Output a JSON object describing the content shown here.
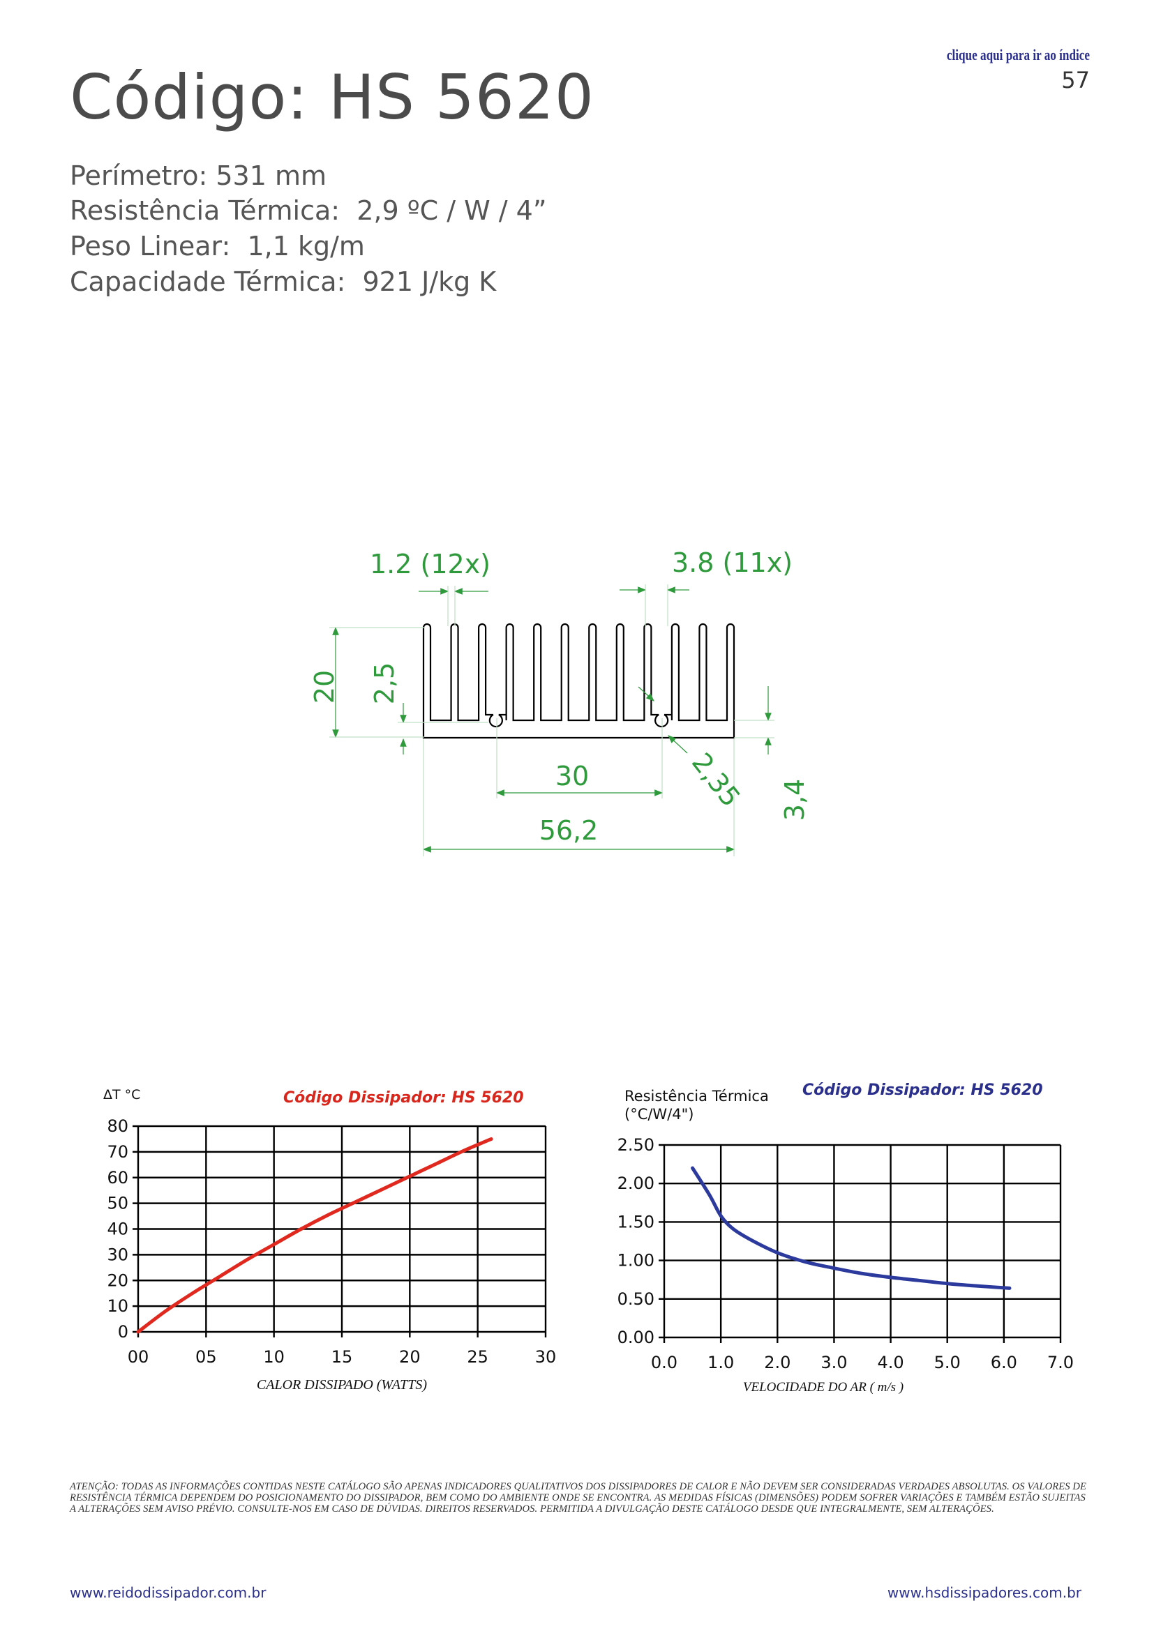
{
  "header": {
    "title": "Código: HS 5620",
    "index_link": "clique aqui para ir ao índice",
    "page_number": "57"
  },
  "specs": [
    "Perímetro: 531 mm",
    "Resistência Térmica:  2,9 ºC / W / 4”",
    "Peso Linear:  1,1 kg/m",
    "Capacidade Térmica:  921 J/kg K"
  ],
  "drawing": {
    "fin_thickness": "1.2 (12x)",
    "fin_gap": "3.8 (11x)",
    "height": "20",
    "groove_height": "2,5",
    "groove_spacing": "30",
    "groove_diameter": "2,35",
    "base_thickness": "3,4",
    "width": "56,2",
    "dimension_color": "#2e9a3c"
  },
  "chart_data": [
    {
      "type": "line",
      "title": "Código Dissipador:  HS  5620",
      "title_color": "#d8261c",
      "ylabel": "ΔT °C",
      "xlabel": "CALOR DISSIPADO (WATTS)",
      "xlim": [
        0,
        30
      ],
      "ylim": [
        0,
        80
      ],
      "x_ticks": [
        "00",
        "05",
        "10",
        "15",
        "20",
        "25",
        "30"
      ],
      "y_ticks": [
        "0",
        "10",
        "20",
        "30",
        "40",
        "50",
        "60",
        "70",
        "80"
      ],
      "grid": true,
      "series": [
        {
          "color": "#e0281e",
          "x": [
            0,
            2,
            4,
            6,
            8,
            10,
            12,
            14,
            16,
            18,
            20,
            22,
            24,
            26
          ],
          "y": [
            0,
            8,
            15,
            21.5,
            28,
            34,
            40,
            45.5,
            50.5,
            55.5,
            60.5,
            65.5,
            70.5,
            75
          ]
        }
      ]
    },
    {
      "type": "line",
      "title": "Código Dissipador:  HS 5620",
      "title_color": "#2a2f8c",
      "ylabel": "Resistência Térmica\n(°C/W/4\")",
      "xlabel": "VELOCIDADE DO AR ( m/s )",
      "xlim": [
        0,
        7
      ],
      "ylim": [
        0,
        2.5
      ],
      "x_ticks": [
        "0.0",
        "1.0",
        "2.0",
        "3.0",
        "4.0",
        "5.0",
        "6.0",
        "7.0"
      ],
      "y_ticks": [
        "0.00",
        "0.50",
        "1.00",
        "1.50",
        "2.00",
        "2.50"
      ],
      "grid": true,
      "series": [
        {
          "color": "#2b3a9c",
          "x": [
            0.5,
            0.8,
            1.0,
            1.2,
            1.5,
            2.0,
            2.5,
            3.0,
            3.5,
            4.0,
            4.5,
            5.0,
            5.5,
            6.1
          ],
          "y": [
            2.2,
            1.85,
            1.58,
            1.42,
            1.28,
            1.1,
            0.98,
            0.9,
            0.83,
            0.78,
            0.74,
            0.7,
            0.67,
            0.64
          ]
        }
      ]
    }
  ],
  "disclaimer": "Atenção:  Todas as informações contidas neste catálogo são apenas indicadores qualitativos dos dissipadores de calor e não devem ser consideradas verdades absolutas. Os valores de resistência térmica dependem do posicionamento do dissipador, bem como do ambiente onde se encontra. As medidas físicas (dimensões) podem sofrer variações e também estão sujeitas a alterações sem aviso prévio.  Consulte-nos em caso de dúvidas.  Direitos reservados.  Permitida a divulgação deste catálogo desde que integralmente,  sem alterações.",
  "footer": {
    "left_url": "www.reidodissipador.com.br",
    "right_url": "www.hsdissipadores.com.br"
  }
}
